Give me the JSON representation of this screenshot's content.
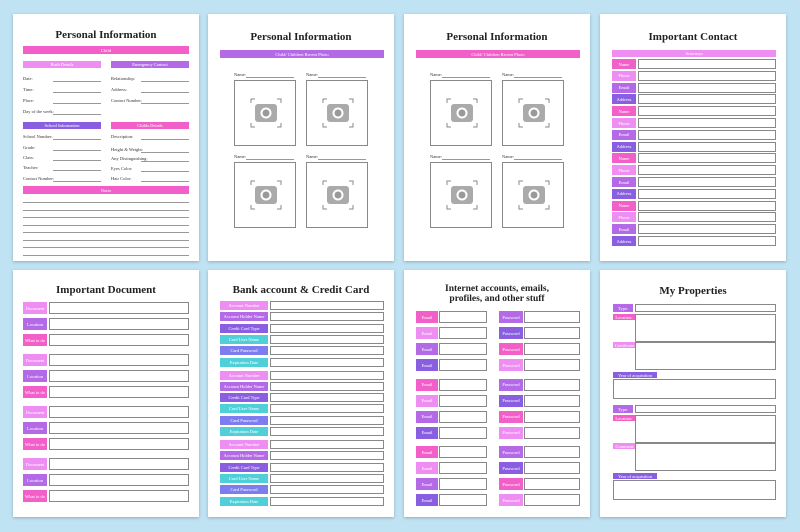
{
  "personal_info": {
    "title": "Personal Information",
    "header": "Child",
    "birth": {
      "heading": "Birth Details",
      "fields": [
        "Date:",
        "Time:",
        "Place:",
        "Day of the week:"
      ]
    },
    "emergency": {
      "heading": "Emergency Contact",
      "fields": [
        "Relationship:",
        "Address:",
        "Contact Number:"
      ]
    },
    "school": {
      "heading": "School Information",
      "fields": [
        "School Number:",
        "Grade:",
        "Class:",
        "Teacher:",
        "Contact Number:"
      ]
    },
    "childs": {
      "heading": "Childs Details",
      "fields": [
        "Description:",
        "Height & Weight:",
        "Any Distinguishing:",
        "Eyes Color:",
        "Hair Color:"
      ]
    },
    "notes": "Notes"
  },
  "photos": [
    {
      "title": "Personal Information",
      "header": "Child/ Children Recent Photo",
      "names": [
        "Name:",
        "Name:",
        "Name:",
        "Name:"
      ]
    },
    {
      "title": "Personal Information",
      "header": "Child/ Children Recent Photo",
      "names": [
        "Name:",
        "Name:",
        "Name:",
        "Name:"
      ]
    }
  ],
  "contacts": {
    "title": "Important Contact",
    "header": "Attorneys",
    "labels": [
      "Name",
      "Phone",
      "Email",
      "Address",
      "Name",
      "Phone",
      "Email",
      "Address",
      "Name",
      "Phone",
      "Email",
      "Address",
      "Name",
      "Phone",
      "Email",
      "Address"
    ]
  },
  "documents": {
    "title": "Important Document",
    "labels": [
      "Document",
      "Location",
      "What to do",
      "Document",
      "Location",
      "What to do",
      "Document",
      "Location",
      "What to do",
      "Document",
      "Location",
      "What to do"
    ]
  },
  "bank": {
    "title": "Bank account & Credit Card",
    "labels": [
      "Account Number",
      "Account Holder Name",
      "Credit Card Type",
      "Card User Name",
      "Card Password",
      "Expiration Date",
      "Account Number",
      "Account Holder Name",
      "Credit Card Type",
      "Card User Name",
      "Card Password",
      "Expiration Date",
      "Account Number",
      "Account Holder Name",
      "Credit Card Type",
      "Card User Name",
      "Card Password",
      "Expiration Date"
    ]
  },
  "internet": {
    "title": "Internet accounts, emails, profiles, and other stuff",
    "left": [
      "Email",
      "Email",
      "Email",
      "Email",
      "Email",
      "Email",
      "Email",
      "Email",
      "Email",
      "Email",
      "Email",
      "Email"
    ],
    "right": [
      "Password",
      "Password",
      "Password",
      "Password",
      "Password",
      "Password",
      "Password",
      "Password",
      "Password",
      "Password",
      "Password",
      "Password"
    ]
  },
  "properties": {
    "title": "My Properties",
    "labels": [
      "Type:",
      "Location:",
      "Certificate:",
      "Year of acquisition",
      "Type:",
      "Location:",
      "Comment:",
      "Year of acquisition"
    ]
  }
}
